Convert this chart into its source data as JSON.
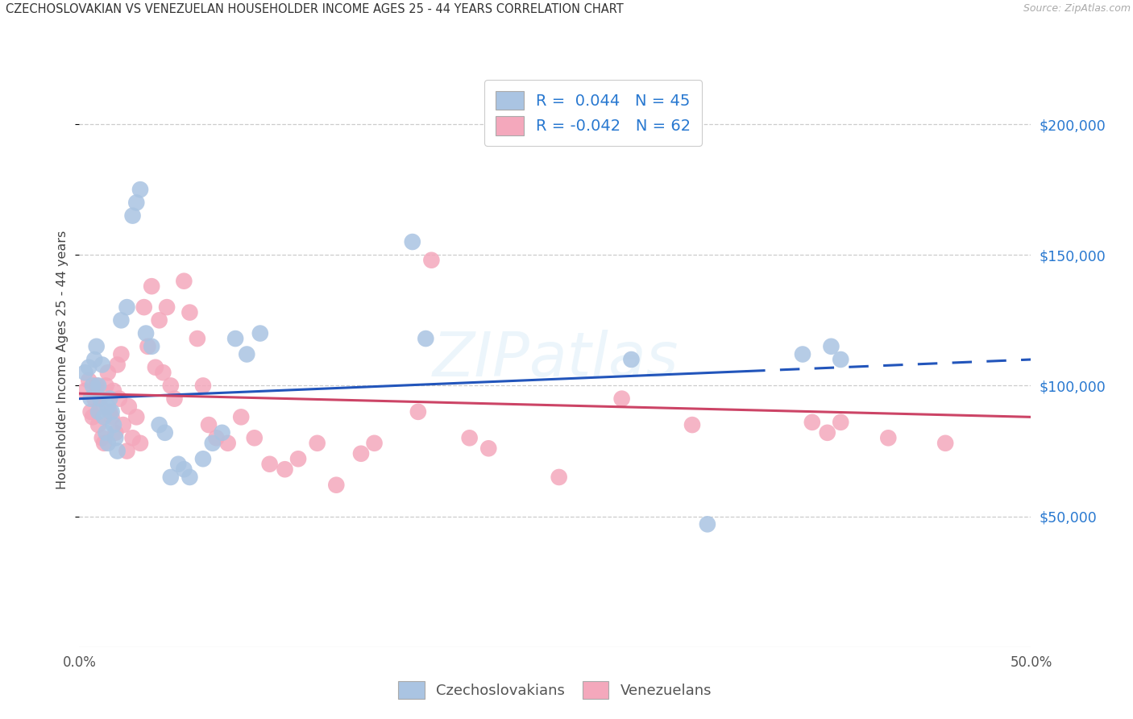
{
  "title": "CZECHOSLOVAKIAN VS VENEZUELAN HOUSEHOLDER INCOME AGES 25 - 44 YEARS CORRELATION CHART",
  "source": "Source: ZipAtlas.com",
  "ylabel_label": "Householder Income Ages 25 - 44 years",
  "legend_bottom": [
    "Czechoslovakians",
    "Venezuelans"
  ],
  "blue_R": "0.044",
  "blue_N": "45",
  "pink_R": "-0.042",
  "pink_N": "62",
  "blue_color": "#aac4e2",
  "pink_color": "#f4a8bc",
  "blue_line_color": "#2255bb",
  "pink_line_color": "#cc4466",
  "text_blue": "#2878d0",
  "title_color": "#333333",
  "grid_color": "#cccccc",
  "background": "#ffffff",
  "xlim": [
    0.0,
    0.5
  ],
  "ylim": [
    0,
    220000
  ],
  "yticks": [
    50000,
    100000,
    150000,
    200000
  ],
  "ytick_labels": [
    "$50,000",
    "$100,000",
    "$150,000",
    "$200,000"
  ],
  "xticks": [
    0.0,
    0.1,
    0.2,
    0.3,
    0.4,
    0.5
  ],
  "xtick_labels": [
    "0.0%",
    "",
    "",
    "",
    "",
    "50.0%"
  ],
  "blue_line_x0": 0.0,
  "blue_line_y0": 95000,
  "blue_line_x1": 0.5,
  "blue_line_y1": 110000,
  "pink_line_x0": 0.0,
  "pink_line_y0": 97000,
  "pink_line_x1": 0.5,
  "pink_line_y1": 88000,
  "blue_x": [
    0.003,
    0.005,
    0.006,
    0.007,
    0.008,
    0.009,
    0.01,
    0.01,
    0.011,
    0.012,
    0.013,
    0.014,
    0.015,
    0.015,
    0.016,
    0.017,
    0.018,
    0.019,
    0.02,
    0.022,
    0.025,
    0.028,
    0.03,
    0.032,
    0.035,
    0.038,
    0.042,
    0.045,
    0.048,
    0.052,
    0.055,
    0.058,
    0.065,
    0.07,
    0.075,
    0.082,
    0.088,
    0.095,
    0.175,
    0.182,
    0.29,
    0.33,
    0.38,
    0.395,
    0.4
  ],
  "blue_y": [
    105000,
    107000,
    95000,
    100000,
    110000,
    115000,
    90000,
    100000,
    95000,
    108000,
    88000,
    82000,
    92000,
    78000,
    95000,
    90000,
    85000,
    80000,
    75000,
    125000,
    130000,
    165000,
    170000,
    175000,
    120000,
    115000,
    85000,
    82000,
    65000,
    70000,
    68000,
    65000,
    72000,
    78000,
    82000,
    118000,
    112000,
    120000,
    155000,
    118000,
    110000,
    47000,
    112000,
    115000,
    110000
  ],
  "pink_x": [
    0.003,
    0.005,
    0.006,
    0.007,
    0.008,
    0.009,
    0.01,
    0.011,
    0.012,
    0.013,
    0.014,
    0.015,
    0.016,
    0.017,
    0.018,
    0.019,
    0.02,
    0.021,
    0.022,
    0.023,
    0.025,
    0.026,
    0.028,
    0.03,
    0.032,
    0.034,
    0.036,
    0.038,
    0.04,
    0.042,
    0.044,
    0.046,
    0.048,
    0.05,
    0.055,
    0.058,
    0.062,
    0.065,
    0.068,
    0.072,
    0.078,
    0.085,
    0.092,
    0.1,
    0.108,
    0.115,
    0.125,
    0.135,
    0.148,
    0.155,
    0.178,
    0.185,
    0.205,
    0.215,
    0.252,
    0.285,
    0.322,
    0.385,
    0.393,
    0.4,
    0.425,
    0.455
  ],
  "pink_y": [
    98000,
    102000,
    90000,
    88000,
    95000,
    100000,
    85000,
    92000,
    80000,
    78000,
    100000,
    105000,
    90000,
    88000,
    98000,
    82000,
    108000,
    95000,
    112000,
    85000,
    75000,
    92000,
    80000,
    88000,
    78000,
    130000,
    115000,
    138000,
    107000,
    125000,
    105000,
    130000,
    100000,
    95000,
    140000,
    128000,
    118000,
    100000,
    85000,
    80000,
    78000,
    88000,
    80000,
    70000,
    68000,
    72000,
    78000,
    62000,
    74000,
    78000,
    90000,
    148000,
    80000,
    76000,
    65000,
    95000,
    85000,
    86000,
    82000,
    86000,
    80000,
    78000
  ]
}
